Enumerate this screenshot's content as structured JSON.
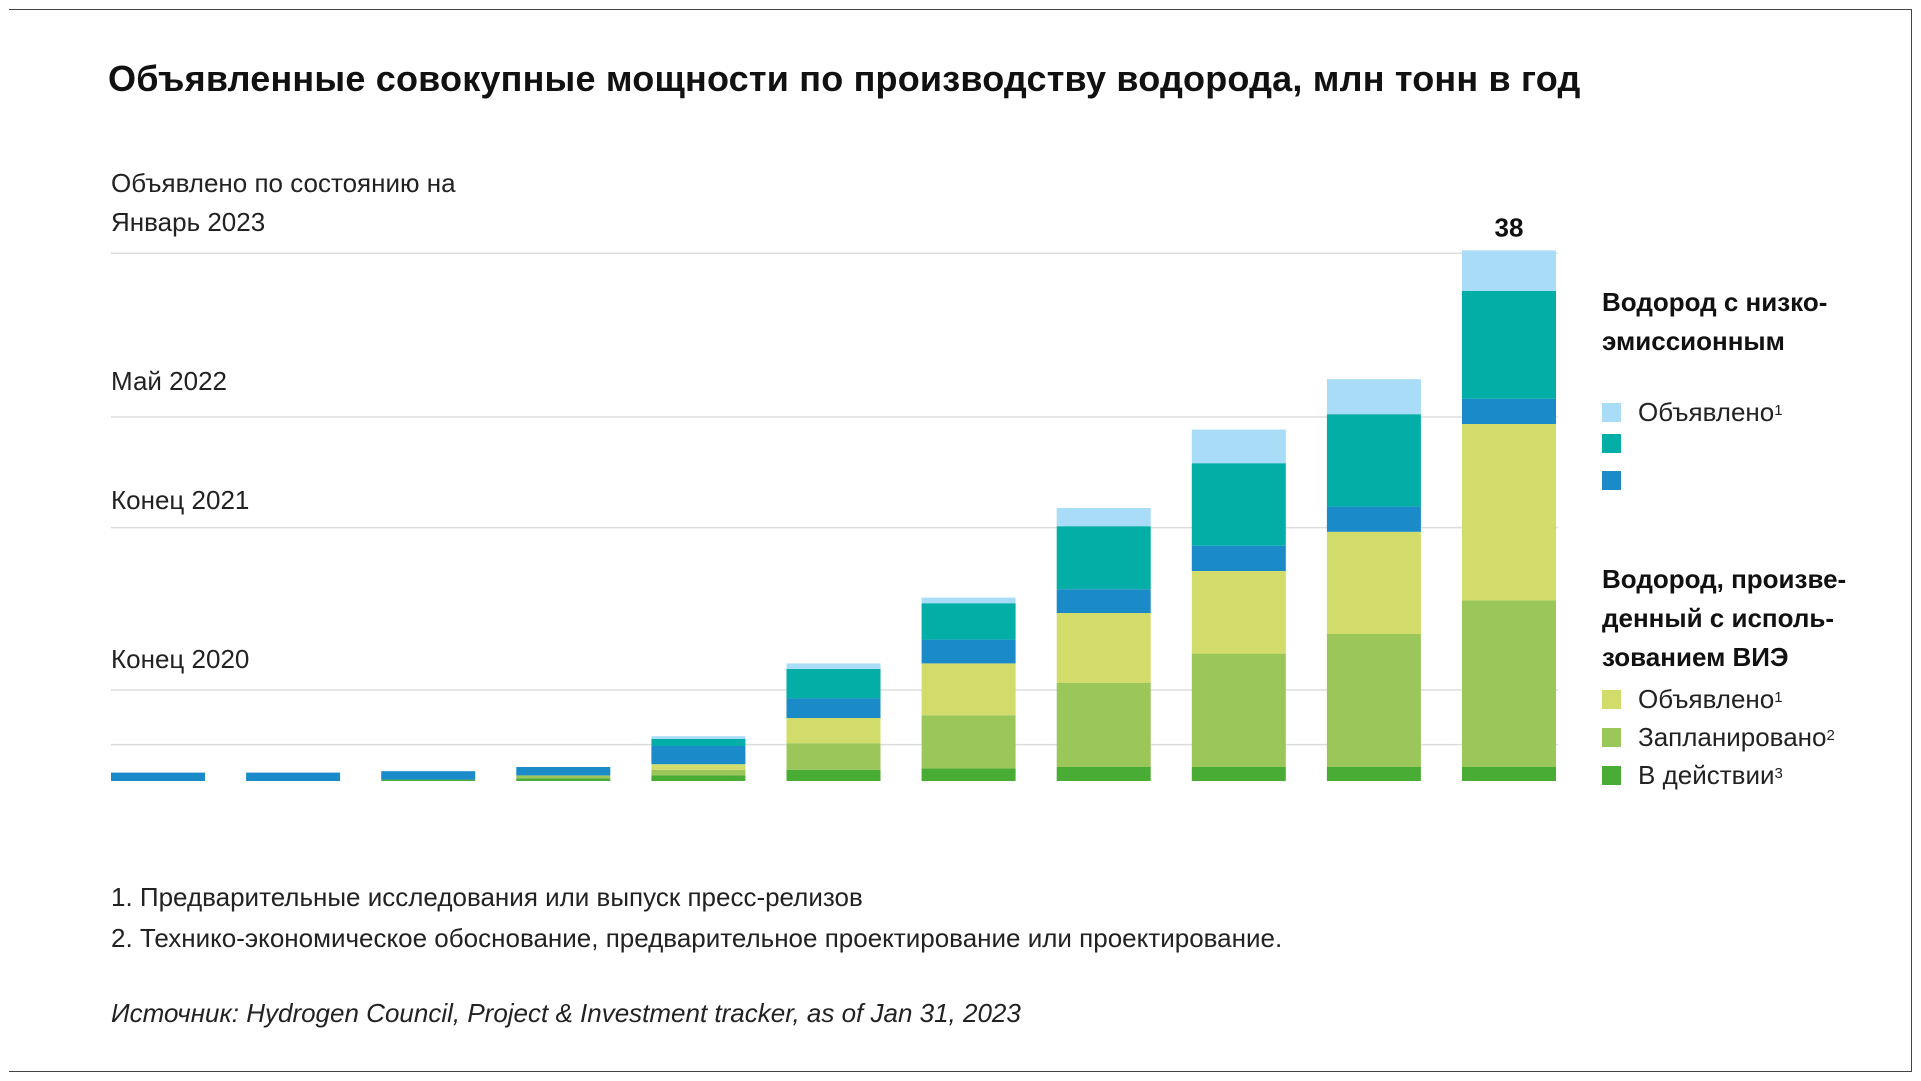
{
  "title": "Объявленные совокупные мощности по производству водорода, млн тонн в год",
  "reference_labels": {
    "jan2023_line1": "Объявлено по состоянию на",
    "jan2023_line2": "Январь 2023",
    "may2022": "Май 2022",
    "end2021": "Конец 2021",
    "end2020": "Конец 2020"
  },
  "legend": {
    "group1_title_line1": "Водород с низко-",
    "group1_title_line2": "эмиссионным",
    "group1_items": [
      {
        "label": "Объявлено",
        "sup": "1",
        "color": "#A8DCF7"
      },
      {
        "label": "",
        "sup": "",
        "color": "#03AEA6"
      },
      {
        "label": "",
        "sup": "",
        "color": "#1B8AC9"
      }
    ],
    "group2_title_line1": "Водород, произве-",
    "group2_title_line2": "денный с исполь-",
    "group2_title_line3": "зованием ВИЭ",
    "group2_items": [
      {
        "label": "Объявлено",
        "sup": "1",
        "color": "#D2DC6A"
      },
      {
        "label": "Запланировано",
        "sup": "2",
        "color": "#9BC659"
      },
      {
        "label": "В действии",
        "sup": "3",
        "color": "#49AC34"
      }
    ]
  },
  "footnotes": [
    "1. Предварительные исследования или выпуск пресс-релизов",
    "2. Технико-экономическое обоснование, предварительное проектирование или проектирование."
  ],
  "source": "Источник: Hydrogen Council, Project & Investment tracker, as of Jan 31, 2023",
  "chart_data": {
    "type": "bar",
    "stacked": true,
    "title": "Объявленные совокупные мощности по производству водорода, млн тонн в год",
    "xlabel": "",
    "ylabel": "млн тонн в год",
    "ylim": [
      0,
      40
    ],
    "grid": false,
    "legend_position": "right",
    "categories": [
      "1",
      "2",
      "3",
      "4",
      "5",
      "6",
      "7",
      "8",
      "9",
      "10",
      "11"
    ],
    "series": [
      {
        "name": "ВИЭ — В действии",
        "color": "#49AC34",
        "values": [
          0,
          0,
          0.1,
          0.2,
          0.4,
          0.8,
          0.9,
          1.0,
          1.0,
          1.0,
          1.0
        ]
      },
      {
        "name": "ВИЭ — Запланировано",
        "color": "#9BC659",
        "values": [
          0,
          0,
          0,
          0.2,
          0.4,
          1.9,
          3.8,
          6.0,
          8.1,
          9.5,
          11.9
        ]
      },
      {
        "name": "ВИЭ — Объявлено",
        "color": "#D2DC6A",
        "values": [
          0,
          0,
          0,
          0,
          0.4,
          1.8,
          3.7,
          5.0,
          5.9,
          7.3,
          12.6
        ]
      },
      {
        "name": "Низкоэмиссионный — (тёмно-синий)",
        "color": "#1B8AC9",
        "values": [
          0.6,
          0.6,
          0.6,
          0.6,
          1.3,
          1.4,
          1.7,
          1.7,
          1.8,
          1.8,
          1.8
        ]
      },
      {
        "name": "Низкоэмиссионный — (бирюзовый)",
        "color": "#03AEA6",
        "values": [
          0,
          0,
          0,
          0,
          0.5,
          2.1,
          2.6,
          4.5,
          5.9,
          6.6,
          7.7
        ]
      },
      {
        "name": "Низкоэмиссионный — Объявлено",
        "color": "#A8DCF7",
        "values": [
          0,
          0,
          0,
          0,
          0.2,
          0.4,
          0.4,
          1.3,
          2.4,
          2.5,
          2.9
        ]
      }
    ],
    "data_labels": [
      {
        "category": "11",
        "text": "38"
      }
    ],
    "reference_lines": [
      {
        "label": "Январь 2023",
        "value": 37.7
      },
      {
        "label": "Май 2022",
        "value": 26.0
      },
      {
        "label": "Конец 2021",
        "value": 18.1
      },
      {
        "label": "Конец 2020",
        "value": 6.5
      },
      {
        "label": "",
        "value": 2.6
      }
    ]
  }
}
